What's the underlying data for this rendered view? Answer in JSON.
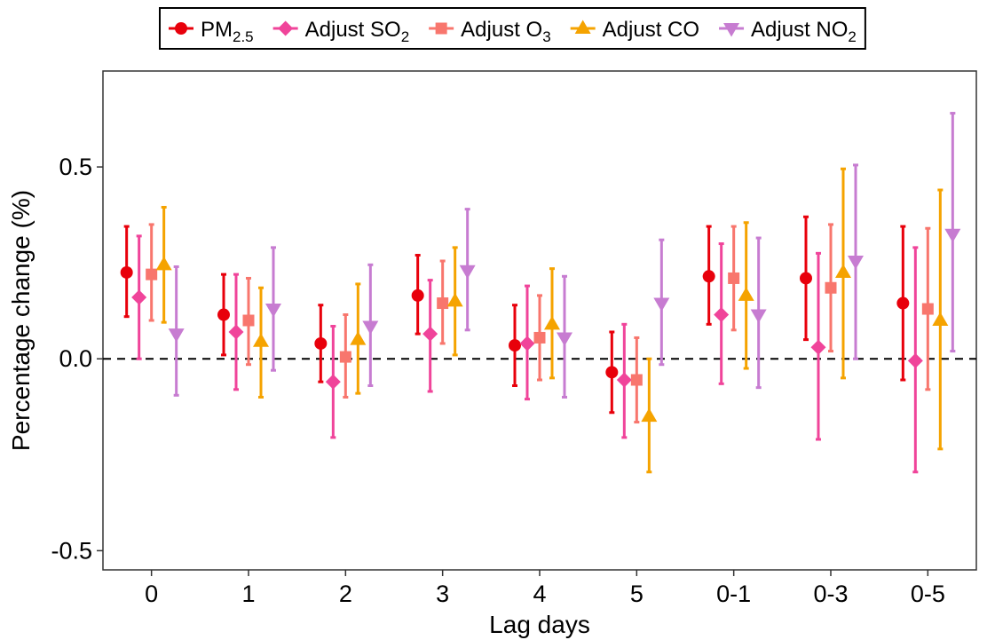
{
  "chart_data": {
    "type": "errorbar",
    "xlabel": "Lag days",
    "ylabel": "Percentage change (%)",
    "categories": [
      "0",
      "1",
      "2",
      "3",
      "4",
      "5",
      "0-1",
      "0-3",
      "0-5"
    ],
    "ylim": [
      -0.55,
      0.75
    ],
    "yticks": [
      -0.5,
      0.0,
      0.5
    ],
    "ytick_labels": [
      "-0.5",
      "0.0",
      "0.5"
    ],
    "grid": false,
    "reference_line": {
      "y": 0,
      "style": "dashed",
      "color": "#000000"
    },
    "legend": {
      "placement": "top",
      "boxed": true
    },
    "series": [
      {
        "name": "PM2.5",
        "legend_main": "PM",
        "legend_sub": "2.5",
        "legend_suffix": "",
        "marker": "circle",
        "color": "#e8000b",
        "estimate": [
          0.225,
          0.115,
          0.04,
          0.165,
          0.035,
          -0.035,
          0.215,
          0.21,
          0.145
        ],
        "lower": [
          0.11,
          0.01,
          -0.06,
          0.065,
          -0.07,
          -0.14,
          0.09,
          0.05,
          -0.055
        ],
        "upper": [
          0.345,
          0.22,
          0.14,
          0.27,
          0.14,
          0.07,
          0.345,
          0.37,
          0.345
        ]
      },
      {
        "name": "Adjust SO2",
        "legend_main": "Adjust SO",
        "legend_sub": "2",
        "legend_suffix": "",
        "marker": "diamond",
        "color": "#f0449a",
        "estimate": [
          0.16,
          0.07,
          -0.06,
          0.065,
          0.04,
          -0.055,
          0.115,
          0.03,
          -0.005
        ],
        "lower": [
          0.0,
          -0.08,
          -0.205,
          -0.085,
          -0.105,
          -0.205,
          -0.065,
          -0.21,
          -0.295
        ],
        "upper": [
          0.32,
          0.22,
          0.085,
          0.205,
          0.19,
          0.09,
          0.3,
          0.275,
          0.29
        ]
      },
      {
        "name": "Adjust O3",
        "legend_main": "Adjust O",
        "legend_sub": "3",
        "legend_suffix": "",
        "marker": "square",
        "color": "#f8766d",
        "estimate": [
          0.22,
          0.1,
          0.005,
          0.145,
          0.055,
          -0.055,
          0.21,
          0.185,
          0.13
        ],
        "lower": [
          0.1,
          -0.015,
          -0.1,
          0.04,
          -0.055,
          -0.165,
          0.075,
          0.02,
          -0.08
        ],
        "upper": [
          0.35,
          0.21,
          0.115,
          0.255,
          0.165,
          0.055,
          0.345,
          0.35,
          0.34
        ]
      },
      {
        "name": "Adjust CO",
        "legend_main": "Adjust CO",
        "legend_sub": "",
        "legend_suffix": "",
        "marker": "triangle-up",
        "color": "#f5a300",
        "estimate": [
          0.245,
          0.045,
          0.05,
          0.15,
          0.09,
          -0.15,
          0.165,
          0.225,
          0.1
        ],
        "lower": [
          0.095,
          -0.1,
          -0.09,
          0.01,
          -0.05,
          -0.295,
          -0.025,
          -0.05,
          -0.235
        ],
        "upper": [
          0.395,
          0.185,
          0.195,
          0.29,
          0.235,
          0.0,
          0.355,
          0.495,
          0.44
        ]
      },
      {
        "name": "Adjust NO2",
        "legend_main": "Adjust NO",
        "legend_sub": "2",
        "legend_suffix": "",
        "marker": "triangle-down",
        "color": "#c77cd1",
        "estimate": [
          0.065,
          0.13,
          0.085,
          0.23,
          0.055,
          0.145,
          0.115,
          0.255,
          0.325
        ],
        "lower": [
          -0.095,
          -0.03,
          -0.07,
          0.075,
          -0.1,
          -0.015,
          -0.075,
          0.0,
          0.02
        ],
        "upper": [
          0.24,
          0.29,
          0.245,
          0.39,
          0.215,
          0.31,
          0.315,
          0.505,
          0.64
        ]
      }
    ]
  }
}
